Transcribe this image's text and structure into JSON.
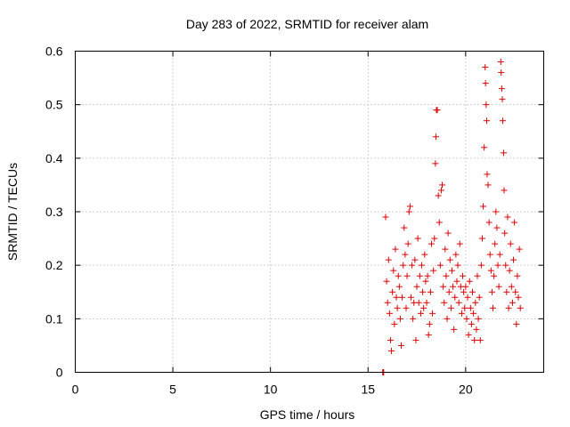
{
  "chart_data": {
    "type": "scatter",
    "title": "Day 283 of 2022, SRMTID for receiver alam",
    "xlabel": "GPS time / hours",
    "ylabel": "SRMTID / TECUs",
    "xlim": [
      0,
      24
    ],
    "ylim": [
      0,
      0.6
    ],
    "xticks": [
      0,
      5,
      10,
      15,
      20
    ],
    "xtick_labels": [
      "0",
      "5",
      "10",
      "15",
      "20"
    ],
    "yticks": [
      0,
      0.1,
      0.2,
      0.3,
      0.4,
      0.5,
      0.6
    ],
    "ytick_labels": [
      "0",
      "0.1",
      "0.2",
      "0.3",
      "0.4",
      "0.5",
      "0.6"
    ],
    "grid": true,
    "marker": "+",
    "color": "#dd0000",
    "series": [
      {
        "name": "SRMTID",
        "points": [
          [
            15.75,
            0.0
          ],
          [
            15.78,
            0.0
          ],
          [
            15.8,
            0.0
          ],
          [
            15.9,
            0.29
          ],
          [
            15.95,
            0.17
          ],
          [
            16.0,
            0.13
          ],
          [
            16.05,
            0.21
          ],
          [
            16.1,
            0.11
          ],
          [
            16.15,
            0.06
          ],
          [
            16.2,
            0.04
          ],
          [
            16.25,
            0.15
          ],
          [
            16.3,
            0.19
          ],
          [
            16.35,
            0.09
          ],
          [
            16.4,
            0.23
          ],
          [
            16.45,
            0.14
          ],
          [
            16.5,
            0.12
          ],
          [
            16.55,
            0.18
          ],
          [
            16.6,
            0.16
          ],
          [
            16.65,
            0.1
          ],
          [
            16.7,
            0.05
          ],
          [
            16.75,
            0.14
          ],
          [
            16.8,
            0.2
          ],
          [
            16.85,
            0.27
          ],
          [
            16.9,
            0.22
          ],
          [
            16.95,
            0.12
          ],
          [
            17.0,
            0.18
          ],
          [
            17.05,
            0.24
          ],
          [
            17.1,
            0.3
          ],
          [
            17.15,
            0.31
          ],
          [
            17.2,
            0.14
          ],
          [
            17.25,
            0.2
          ],
          [
            17.3,
            0.1
          ],
          [
            17.35,
            0.13
          ],
          [
            17.4,
            0.21
          ],
          [
            17.45,
            0.06
          ],
          [
            17.5,
            0.16
          ],
          [
            17.55,
            0.25
          ],
          [
            17.6,
            0.13
          ],
          [
            17.65,
            0.18
          ],
          [
            17.7,
            0.11
          ],
          [
            17.75,
            0.2
          ],
          [
            17.8,
            0.15
          ],
          [
            17.85,
            0.12
          ],
          [
            17.9,
            0.22
          ],
          [
            17.95,
            0.17
          ],
          [
            18.0,
            0.13
          ],
          [
            18.05,
            0.18
          ],
          [
            18.1,
            0.07
          ],
          [
            18.15,
            0.09
          ],
          [
            18.2,
            0.15
          ],
          [
            18.25,
            0.24
          ],
          [
            18.3,
            0.11
          ],
          [
            18.35,
            0.19
          ],
          [
            18.4,
            0.25
          ],
          [
            18.45,
            0.39
          ],
          [
            18.48,
            0.44
          ],
          [
            18.5,
            0.49
          ],
          [
            18.55,
            0.49
          ],
          [
            18.6,
            0.33
          ],
          [
            18.65,
            0.28
          ],
          [
            18.7,
            0.2
          ],
          [
            18.75,
            0.34
          ],
          [
            18.8,
            0.35
          ],
          [
            18.85,
            0.16
          ],
          [
            18.9,
            0.13
          ],
          [
            18.95,
            0.23
          ],
          [
            19.0,
            0.18
          ],
          [
            19.05,
            0.1
          ],
          [
            19.1,
            0.26
          ],
          [
            19.15,
            0.15
          ],
          [
            19.2,
            0.21
          ],
          [
            19.25,
            0.12
          ],
          [
            19.3,
            0.19
          ],
          [
            19.35,
            0.16
          ],
          [
            19.4,
            0.08
          ],
          [
            19.45,
            0.14
          ],
          [
            19.5,
            0.22
          ],
          [
            19.55,
            0.17
          ],
          [
            19.6,
            0.2
          ],
          [
            19.65,
            0.13
          ],
          [
            19.7,
            0.24
          ],
          [
            19.75,
            0.16
          ],
          [
            19.8,
            0.11
          ],
          [
            19.85,
            0.18
          ],
          [
            19.9,
            0.15
          ],
          [
            19.95,
            0.12
          ],
          [
            20.0,
            0.16
          ],
          [
            20.05,
            0.1
          ],
          [
            20.1,
            0.14
          ],
          [
            20.15,
            0.07
          ],
          [
            20.2,
            0.17
          ],
          [
            20.25,
            0.12
          ],
          [
            20.3,
            0.09
          ],
          [
            20.35,
            0.15
          ],
          [
            20.4,
            0.11
          ],
          [
            20.45,
            0.06
          ],
          [
            20.5,
            0.13
          ],
          [
            20.55,
            0.08
          ],
          [
            20.6,
            0.18
          ],
          [
            20.65,
            0.1
          ],
          [
            20.7,
            0.14
          ],
          [
            20.75,
            0.06
          ],
          [
            20.8,
            0.2
          ],
          [
            20.85,
            0.25
          ],
          [
            20.9,
            0.31
          ],
          [
            20.95,
            0.42
          ],
          [
            21.0,
            0.57
          ],
          [
            21.02,
            0.54
          ],
          [
            21.05,
            0.5
          ],
          [
            21.08,
            0.47
          ],
          [
            21.1,
            0.37
          ],
          [
            21.15,
            0.35
          ],
          [
            21.2,
            0.28
          ],
          [
            21.25,
            0.22
          ],
          [
            21.3,
            0.19
          ],
          [
            21.35,
            0.15
          ],
          [
            21.4,
            0.12
          ],
          [
            21.45,
            0.18
          ],
          [
            21.5,
            0.24
          ],
          [
            21.55,
            0.3
          ],
          [
            21.6,
            0.27
          ],
          [
            21.65,
            0.2
          ],
          [
            21.7,
            0.16
          ],
          [
            21.75,
            0.22
          ],
          [
            21.8,
            0.58
          ],
          [
            21.82,
            0.56
          ],
          [
            21.85,
            0.53
          ],
          [
            21.88,
            0.51
          ],
          [
            21.9,
            0.47
          ],
          [
            21.95,
            0.41
          ],
          [
            21.97,
            0.34
          ],
          [
            22.0,
            0.26
          ],
          [
            22.05,
            0.2
          ],
          [
            22.1,
            0.15
          ],
          [
            22.15,
            0.29
          ],
          [
            22.2,
            0.12
          ],
          [
            22.25,
            0.19
          ],
          [
            22.3,
            0.24
          ],
          [
            22.35,
            0.16
          ],
          [
            22.4,
            0.13
          ],
          [
            22.45,
            0.21
          ],
          [
            22.5,
            0.28
          ],
          [
            22.55,
            0.15
          ],
          [
            22.6,
            0.09
          ],
          [
            22.65,
            0.18
          ],
          [
            22.7,
            0.14
          ],
          [
            22.75,
            0.23
          ],
          [
            22.8,
            0.12
          ]
        ]
      }
    ]
  }
}
